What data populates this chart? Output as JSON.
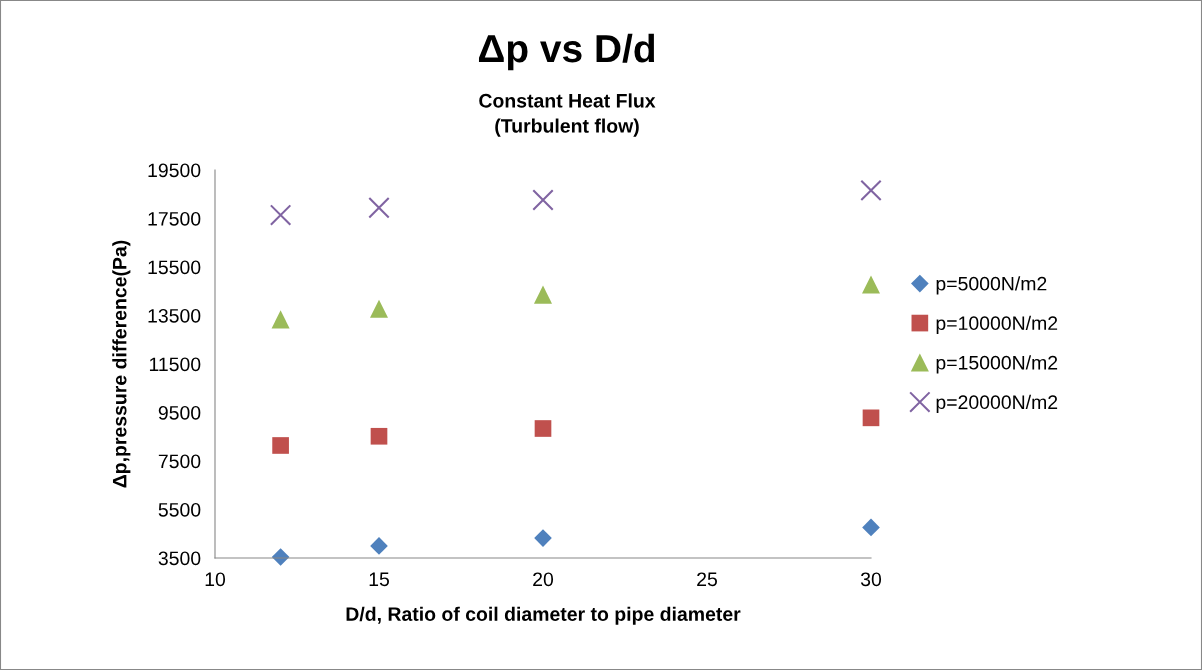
{
  "chart_data": {
    "type": "scatter",
    "title": "Δp vs D/d",
    "subtitle": "Constant Heat Flux\n(Turbulent flow)",
    "xlabel": "D/d, Ratio of coil diameter to pipe diameter",
    "ylabel": "Δp,pressure difference(Pa)",
    "x": [
      12,
      15,
      20,
      30
    ],
    "series": [
      {
        "name": "p=5000N/m2",
        "color": "#4f81bd",
        "marker": "diamond",
        "values": [
          3540,
          4000,
          4320,
          4760
        ]
      },
      {
        "name": "p=10000N/m2",
        "color": "#c0504d",
        "marker": "square",
        "values": [
          8140,
          8520,
          8840,
          9280
        ]
      },
      {
        "name": "p=15000N/m2",
        "color": "#9bbb59",
        "marker": "triangle",
        "values": [
          13340,
          13780,
          14360,
          14780
        ]
      },
      {
        "name": "p=20000N/m2",
        "color": "#8064a2",
        "marker": "cross",
        "values": [
          17640,
          17940,
          18260,
          18660
        ]
      }
    ],
    "xlim": [
      10,
      30
    ],
    "xticks": [
      10,
      15,
      20,
      25,
      30
    ],
    "ylim": [
      3500,
      19500
    ],
    "yticks": [
      3500,
      5500,
      7500,
      9500,
      11500,
      13500,
      15500,
      17500,
      19500
    ],
    "grid": false,
    "legend": "right"
  }
}
